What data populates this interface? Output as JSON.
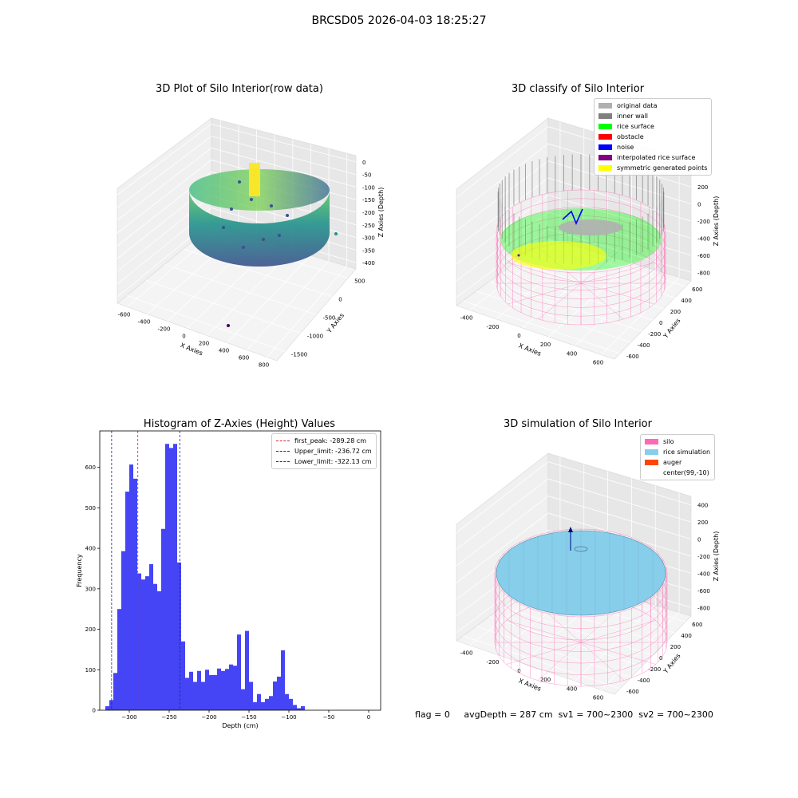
{
  "suptitle": "BRCSD05 2026-04-03 18:25:27",
  "status": {
    "flag": "flag = 0",
    "avg_depth": "avgDepth = 287 cm",
    "sv1": "sv1 = 700~2300",
    "sv2": "sv2 = 700~2300"
  },
  "chart_data": [
    {
      "type": "scatter",
      "title": "3D Plot of Silo Interior(row data)",
      "xlabel": "X Axies",
      "ylabel": "Y Axies",
      "zlabel": "Z Axies (Depth)",
      "x_ticks": [
        -600,
        -400,
        -200,
        0,
        200,
        400,
        600,
        800
      ],
      "y_ticks": [
        500,
        0,
        -500,
        -1000,
        -1500
      ],
      "z_ticks": [
        0,
        -50,
        -100,
        -150,
        -200,
        -250,
        -300,
        -350,
        -400
      ],
      "colormap": "viridis"
    },
    {
      "type": "scatter",
      "title": "3D classify of Silo Interior",
      "xlabel": "X Axies",
      "ylabel": "Y Axies",
      "zlabel": "Z Axies (Depth)",
      "x_ticks": [
        -400,
        -200,
        0,
        200,
        400,
        600
      ],
      "y_ticks": [
        600,
        400,
        200,
        0,
        -200,
        -400,
        -600
      ],
      "z_ticks": [
        400,
        200,
        0,
        -200,
        -400,
        -600,
        -800
      ],
      "legend": [
        {
          "label": "original data",
          "color": "#b0b0b0"
        },
        {
          "label": "inner wall",
          "color": "#808080"
        },
        {
          "label": "rice surface",
          "color": "#00ff00"
        },
        {
          "label": "obstacle",
          "color": "#ff0000"
        },
        {
          "label": "noise",
          "color": "#0000ff"
        },
        {
          "label": "interpolated rice surface",
          "color": "#800080"
        },
        {
          "label": "symmetric generated points",
          "color": "#ffff00"
        }
      ]
    },
    {
      "type": "bar",
      "title": "Histogram of Z-Axies (Height) Values",
      "xlabel": "Depth (cm)",
      "ylabel": "Frequency",
      "xlim": [
        -337,
        15
      ],
      "ylim": [
        0,
        690
      ],
      "x_ticks": [
        -300,
        -250,
        -200,
        -150,
        -100,
        -50,
        0
      ],
      "y_ticks": [
        0,
        100,
        200,
        300,
        400,
        500,
        600
      ],
      "bin_start": -330,
      "bin_width": 5,
      "values": [
        10,
        25,
        92,
        250,
        393,
        540,
        607,
        572,
        338,
        323,
        331,
        361,
        312,
        294,
        448,
        658,
        648,
        658,
        365,
        170,
        80,
        95,
        70,
        97,
        70,
        100,
        87,
        87,
        103,
        97,
        102,
        113,
        110,
        187,
        52,
        196,
        70,
        20,
        40,
        20,
        28,
        35,
        71,
        83,
        148,
        40,
        28,
        13,
        5,
        10
      ],
      "bar_color": "#4545f5",
      "vlines": [
        {
          "label": "first_peak: -289.28 cm",
          "x": -289.28,
          "color": "#d62728"
        },
        {
          "label": "Upper_limit: -236.72 cm",
          "x": -236.72,
          "color": "#1f1fa8"
        },
        {
          "label": "Lower_limit: -322.13 cm",
          "x": -322.13,
          "color": "#1f1fa8"
        }
      ]
    },
    {
      "type": "scatter",
      "title": "3D simulation of Silo Interior",
      "xlabel": "X Axies",
      "ylabel": "Y Axies",
      "zlabel": "Z Axies (Depth)",
      "x_ticks": [
        -400,
        -200,
        0,
        200,
        400,
        600
      ],
      "y_ticks": [
        600,
        400,
        200,
        0,
        -200,
        -400,
        -600
      ],
      "z_ticks": [
        400,
        200,
        0,
        -200,
        -400,
        -600,
        -800
      ],
      "legend": [
        {
          "label": "silo",
          "color": "#ff69b4"
        },
        {
          "label": "rice simulation",
          "color": "#87ceeb"
        },
        {
          "label": "auger",
          "color": "#ff4500"
        },
        {
          "label": "center(99,-10)",
          "color": "#ffffff"
        }
      ]
    }
  ]
}
